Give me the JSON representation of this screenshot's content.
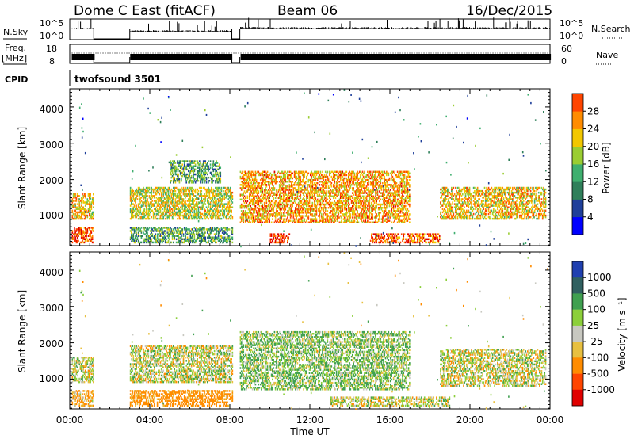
{
  "header": {
    "station": "Dome C East (fitACF)",
    "beam": "Beam 06",
    "date": "16/Dec/2015"
  },
  "param_labels": {
    "nsky": "N.Sky",
    "nsky_tick_top": "10^5",
    "nsky_tick_bottom": "10^0",
    "nsearch": "N.Search",
    "nsearch_tick_top": "10^5",
    "nsearch_tick_bottom": "10^0",
    "freq": "Freq.",
    "freq_unit": "[MHz]",
    "freq_tick_top": "18",
    "freq_tick_bottom": "8",
    "nave": "Nave",
    "nave_tick_top": "60",
    "nave_tick_bottom": "0",
    "cpid": "CPID",
    "cpid_value": "twofsound 3501"
  },
  "panel_power": {
    "ylabel": "Slant Range [km]",
    "yticks": [
      "1000",
      "2000",
      "3000",
      "4000"
    ],
    "colorbar_title": "Power [dB]",
    "colorbar_labels": [
      "4",
      "8",
      "12",
      "16",
      "20",
      "24",
      "28"
    ]
  },
  "panel_velocity": {
    "ylabel": "Slant Range [km]",
    "yticks": [
      "1000",
      "2000",
      "3000",
      "4000"
    ],
    "colorbar_title": "Velocity [m s⁻¹]",
    "colorbar_labels": [
      "1000",
      "500",
      "100",
      "25",
      "-25",
      "-100",
      "-500",
      "-1000"
    ]
  },
  "xaxis": {
    "label": "Time UT",
    "ticks": [
      "00:00",
      "04:00",
      "08:00",
      "12:00",
      "16:00",
      "20:00",
      "00:00"
    ]
  },
  "colors": {
    "power_scale": [
      "#0000ff",
      "#1f3f9a",
      "#2f7f5a",
      "#3faf6f",
      "#9acd32",
      "#f2c700",
      "#ff8c00",
      "#ff4500",
      "#e00000"
    ],
    "velocity_scale": [
      "#2040b0",
      "#306060",
      "#40a050",
      "#8ccf3a",
      "#c8c8c0",
      "#e8c040",
      "#ff8c00",
      "#ff4500",
      "#e00000"
    ]
  },
  "chart_data": [
    {
      "type": "heatmap",
      "quantity": "Power",
      "units": "dB",
      "xlim": [
        0,
        24
      ],
      "ylim": [
        180,
        4500
      ],
      "clim": [
        0,
        32
      ],
      "data_gaps_hours": [
        [
          1.2,
          3.0
        ],
        [
          8.1,
          8.5
        ]
      ],
      "echo_regions": [
        {
          "t": [
            0.1,
            1.2
          ],
          "r": [
            900,
            1600
          ],
          "level": 20
        },
        {
          "t": [
            0.1,
            1.2
          ],
          "r": [
            250,
            700
          ],
          "level": 26
        },
        {
          "t": [
            3.0,
            8.1
          ],
          "r": [
            900,
            1800
          ],
          "level": 18
        },
        {
          "t": [
            3.0,
            8.1
          ],
          "r": [
            250,
            700
          ],
          "level": 12
        },
        {
          "t": [
            5.0,
            7.5
          ],
          "r": [
            1900,
            2500
          ],
          "level": 12
        },
        {
          "t": [
            8.5,
            17.0
          ],
          "r": [
            800,
            2200
          ],
          "level": 22
        },
        {
          "t": [
            10.0,
            11.0
          ],
          "r": [
            250,
            500
          ],
          "level": 28
        },
        {
          "t": [
            15.0,
            18.5
          ],
          "r": [
            250,
            500
          ],
          "level": 26
        },
        {
          "t": [
            18.5,
            23.8
          ],
          "r": [
            900,
            1800
          ],
          "level": 20
        }
      ]
    },
    {
      "type": "heatmap",
      "quantity": "Velocity",
      "units": "m/s",
      "xlim": [
        0,
        24
      ],
      "ylim": [
        180,
        4500
      ],
      "clim": [
        -1000,
        1000
      ],
      "data_gaps_hours": [
        [
          1.2,
          3.0
        ],
        [
          8.1,
          8.5
        ]
      ],
      "echo_regions": [
        {
          "t": [
            0.1,
            1.2
          ],
          "r": [
            900,
            1600
          ],
          "level": 0
        },
        {
          "t": [
            0.1,
            1.2
          ],
          "r": [
            250,
            700
          ],
          "level": -80
        },
        {
          "t": [
            3.0,
            8.1
          ],
          "r": [
            900,
            1900
          ],
          "level": 10
        },
        {
          "t": [
            3.0,
            8.1
          ],
          "r": [
            250,
            700
          ],
          "level": -200
        },
        {
          "t": [
            8.5,
            17.0
          ],
          "r": [
            700,
            2300
          ],
          "level": 80
        },
        {
          "t": [
            13.0,
            19.0
          ],
          "r": [
            250,
            500
          ],
          "level": 0
        },
        {
          "t": [
            18.5,
            23.8
          ],
          "r": [
            800,
            1800
          ],
          "level": 0
        }
      ]
    }
  ]
}
